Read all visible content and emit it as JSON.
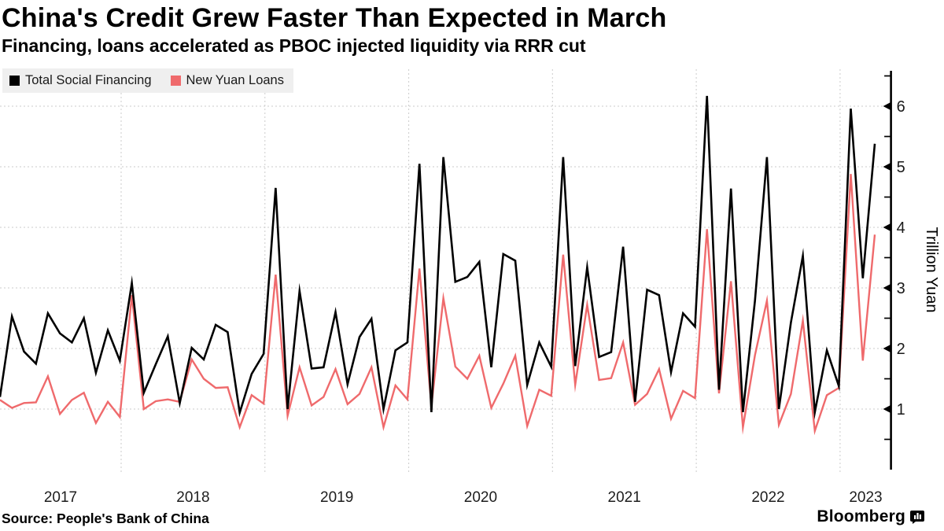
{
  "header": {
    "title": "China's Credit Grew Faster Than Expected in March",
    "subtitle": "Financing, loans accelerated as PBOC injected liquidity via RRR cut"
  },
  "legend": {
    "items": [
      {
        "label": "Total Social Financing",
        "color": "#000000"
      },
      {
        "label": "New Yuan Loans",
        "color": "#ef6a6c"
      }
    ]
  },
  "footer": {
    "source": "Source: People's Bank of China",
    "brand": "Bloomberg"
  },
  "colors": {
    "grid": "#cbcbcb",
    "axis": "#000000",
    "tick_label": "#1a1a1a",
    "year_label": "#1d1d1d",
    "legend_bg": "#efefef",
    "background": "#ffffff"
  },
  "chart_data": {
    "type": "line",
    "title": "China's Credit Grew Faster Than Expected in March",
    "subtitle": "Financing, loans accelerated as PBOC injected liquidity via RRR cut",
    "ylabel": "Trillion Yuan",
    "xlabel": "",
    "x_unit": "month",
    "grid": "dashed",
    "legend_position": "top-left",
    "axis_side": "right",
    "ylim": [
      0.35,
      6.6
    ],
    "y_ticks": [
      1,
      2,
      3,
      4,
      5,
      6
    ],
    "y_minor_ticks": [
      0.5,
      1.5,
      2.5,
      3.5,
      4.5,
      5.5,
      6.5
    ],
    "x_tick_labels": [
      "2017",
      "2018",
      "2019",
      "2020",
      "2021",
      "2022",
      "2023"
    ],
    "months": [
      "2017-02",
      "2017-03",
      "2017-04",
      "2017-05",
      "2017-06",
      "2017-07",
      "2017-08",
      "2017-09",
      "2017-10",
      "2017-11",
      "2017-12",
      "2018-01",
      "2018-02",
      "2018-03",
      "2018-04",
      "2018-05",
      "2018-06",
      "2018-07",
      "2018-08",
      "2018-09",
      "2018-10",
      "2018-11",
      "2018-12",
      "2019-01",
      "2019-02",
      "2019-03",
      "2019-04",
      "2019-05",
      "2019-06",
      "2019-07",
      "2019-08",
      "2019-09",
      "2019-10",
      "2019-11",
      "2019-12",
      "2020-01",
      "2020-02",
      "2020-03",
      "2020-04",
      "2020-05",
      "2020-06",
      "2020-07",
      "2020-08",
      "2020-09",
      "2020-10",
      "2020-11",
      "2020-12",
      "2021-01",
      "2021-02",
      "2021-03",
      "2021-04",
      "2021-05",
      "2021-06",
      "2021-07",
      "2021-08",
      "2021-09",
      "2021-10",
      "2021-11",
      "2021-12",
      "2022-01",
      "2022-02",
      "2022-03",
      "2022-04",
      "2022-05",
      "2022-06",
      "2022-07",
      "2022-08",
      "2022-09",
      "2022-10",
      "2022-11",
      "2022-12",
      "2023-01",
      "2023-02",
      "2023-03"
    ],
    "series": [
      {
        "name": "Total Social Financing",
        "color": "#000000",
        "width": 2.6,
        "values": [
          1.2,
          2.53,
          1.95,
          1.75,
          2.58,
          2.25,
          2.1,
          2.5,
          1.6,
          2.3,
          1.8,
          3.08,
          1.27,
          1.74,
          2.2,
          1.1,
          2.01,
          1.82,
          2.39,
          2.27,
          0.94,
          1.58,
          1.91,
          4.65,
          1.0,
          2.95,
          1.67,
          1.69,
          2.6,
          1.41,
          2.19,
          2.49,
          1.0,
          1.97,
          2.1,
          5.05,
          0.95,
          5.16,
          3.1,
          3.18,
          3.43,
          1.69,
          3.56,
          3.45,
          1.4,
          2.1,
          1.7,
          5.16,
          1.71,
          3.34,
          1.86,
          1.94,
          3.68,
          1.12,
          2.97,
          2.88,
          1.61,
          2.58,
          2.36,
          6.17,
          1.32,
          4.64,
          0.95,
          2.79,
          5.16,
          1.0,
          2.43,
          3.53,
          0.95,
          1.97,
          1.38,
          5.96,
          3.16,
          5.38
        ]
      },
      {
        "name": "New Yuan Loans",
        "color": "#ef6a6c",
        "width": 2.4,
        "values": [
          1.15,
          1.02,
          1.1,
          1.11,
          1.54,
          0.92,
          1.15,
          1.27,
          0.77,
          1.12,
          0.87,
          2.88,
          1.0,
          1.13,
          1.16,
          1.12,
          1.82,
          1.5,
          1.35,
          1.36,
          0.7,
          1.23,
          1.09,
          3.22,
          0.89,
          1.69,
          1.06,
          1.2,
          1.66,
          1.08,
          1.25,
          1.69,
          0.7,
          1.39,
          1.16,
          3.32,
          1.05,
          2.83,
          1.7,
          1.5,
          1.88,
          1.02,
          1.42,
          1.88,
          0.72,
          1.32,
          1.22,
          3.55,
          1.4,
          2.72,
          1.48,
          1.51,
          2.1,
          1.07,
          1.25,
          1.66,
          0.84,
          1.3,
          1.18,
          3.97,
          1.26,
          3.11,
          0.7,
          1.89,
          2.79,
          0.74,
          1.25,
          2.46,
          0.64,
          1.23,
          1.35,
          4.88,
          1.8,
          3.88
        ]
      }
    ]
  }
}
